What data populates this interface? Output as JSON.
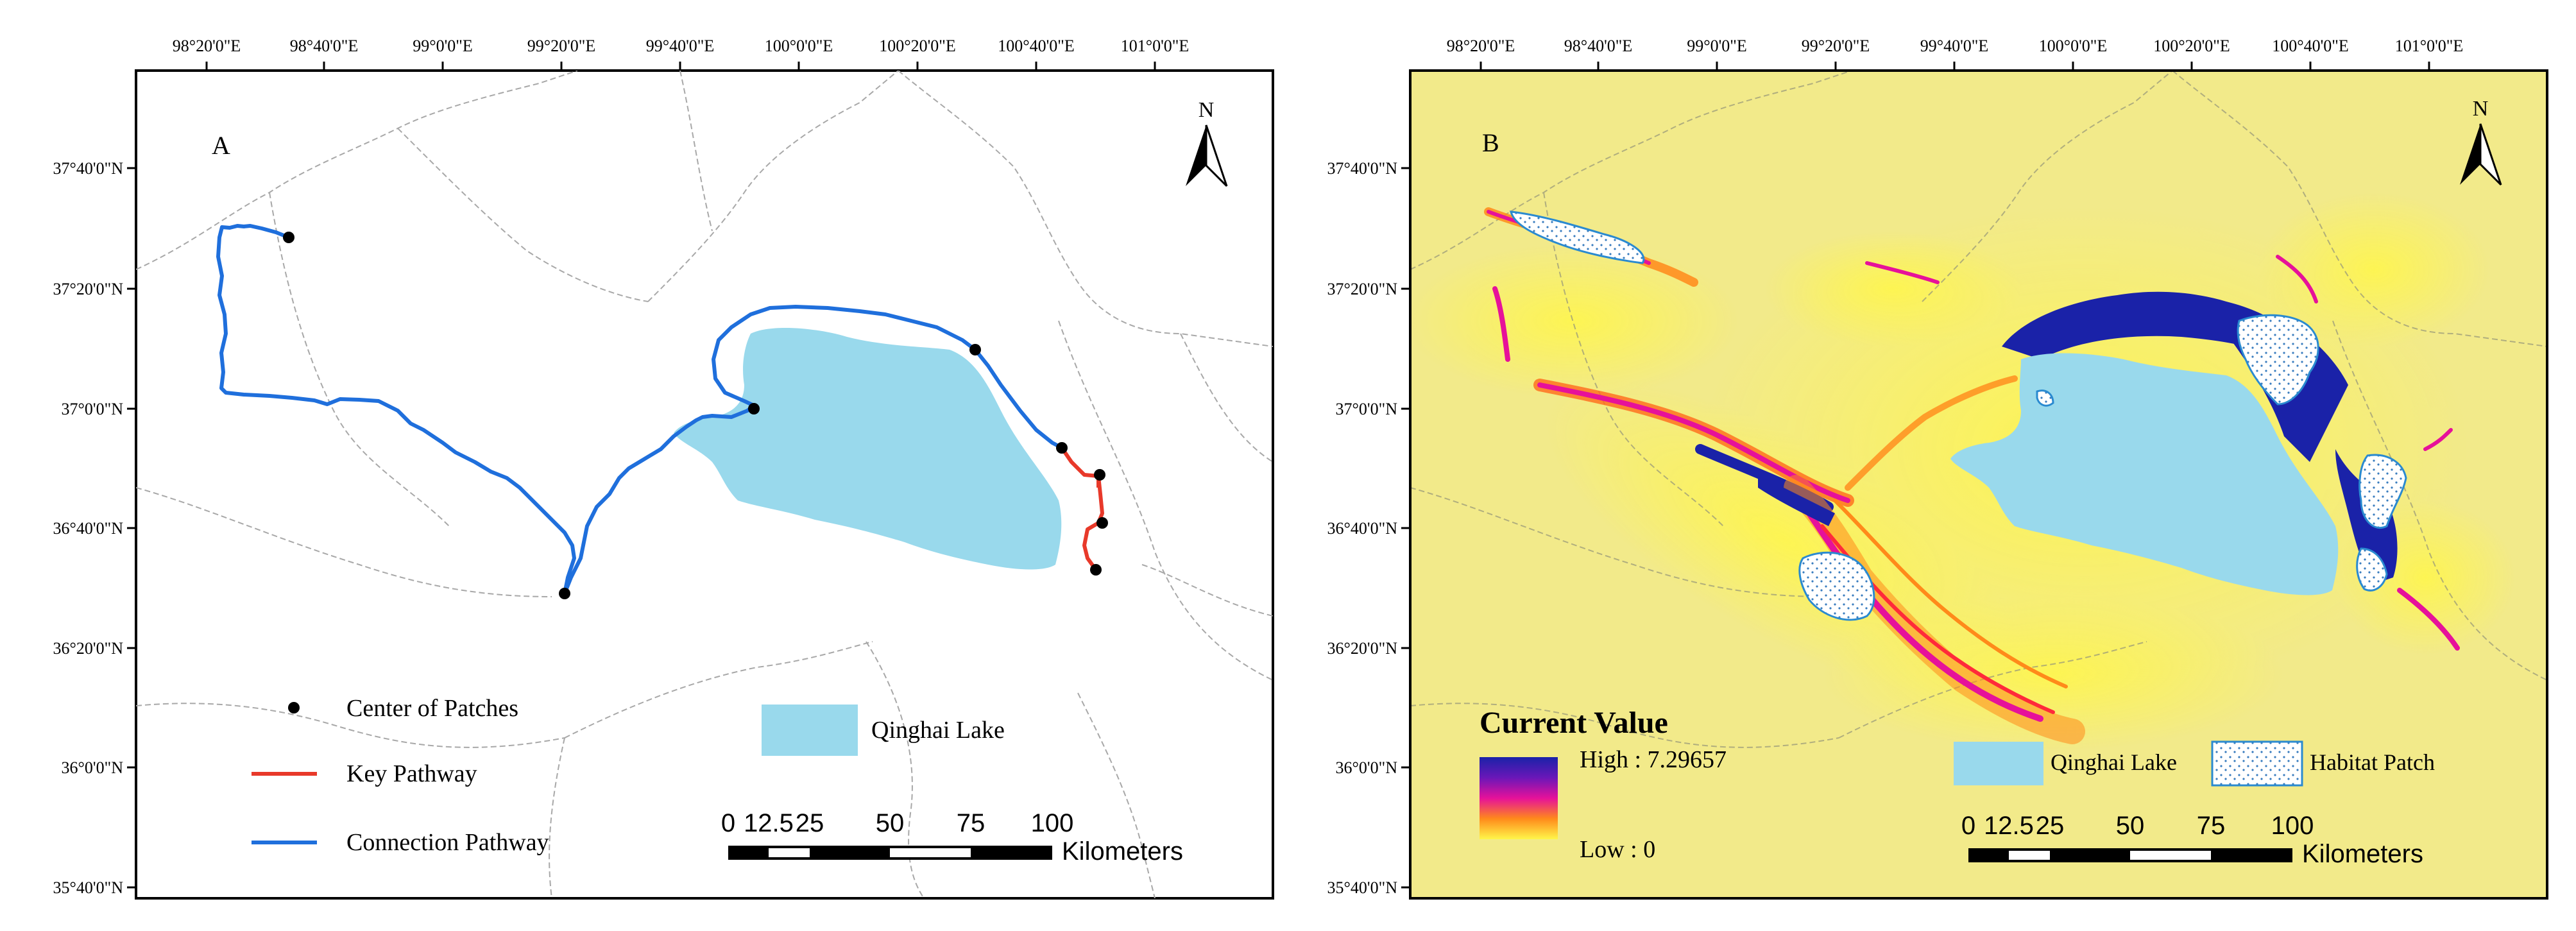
{
  "panel_a": {
    "label": "A",
    "top_ticks": [
      "98°20'0\"E",
      "98°40'0\"E",
      "99°0'0\"E",
      "99°20'0\"E",
      "99°40'0\"E",
      "100°0'0\"E",
      "100°20'0\"E",
      "100°40'0\"E",
      "101°0'0\"E"
    ],
    "left_ticks": [
      "37°40'0\"N",
      "37°20'0\"N",
      "37°0'0\"N",
      "36°40'0\"N",
      "36°20'0\"N",
      "36°0'0\"N",
      "35°40'0\"N"
    ],
    "north": "N",
    "legend": {
      "center": "Center of Patches",
      "key": "Key Pathway",
      "connection": "Connection Pathway",
      "lake": "Qinghai Lake"
    },
    "scale": {
      "ticks": [
        "0",
        "12.5",
        "25",
        "50",
        "75",
        "100"
      ],
      "unit": "Kilometers"
    },
    "colors": {
      "lake": "#99d9ec",
      "connection": "#1f6fdc",
      "key": "#e8392a",
      "point": "#000000"
    }
  },
  "panel_b": {
    "label": "B",
    "top_ticks": [
      "98°20'0\"E",
      "98°40'0\"E",
      "99°0'0\"E",
      "99°20'0\"E",
      "99°40'0\"E",
      "100°0'0\"E",
      "100°20'0\"E",
      "100°40'0\"E",
      "101°0'0\"E"
    ],
    "left_ticks": [
      "37°40'0\"N",
      "37°20'0\"N",
      "37°0'0\"N",
      "36°40'0\"N",
      "36°20'0\"N",
      "36°0'0\"N",
      "35°40'0\"N"
    ],
    "north": "N",
    "legend": {
      "title": "Current Value",
      "high": "High : 7.29657",
      "low": "Low : 0",
      "lake": "Qinghai Lake",
      "habitat": "Habitat Patch"
    },
    "scale": {
      "ticks": [
        "0",
        "12.5",
        "25",
        "50",
        "75",
        "100"
      ],
      "unit": "Kilometers"
    },
    "colors": {
      "background": "#f2ea8a",
      "lake": "#99d9ec",
      "high": "#1a22a8",
      "mid": "#e6119a",
      "low": "#fff64a"
    }
  }
}
